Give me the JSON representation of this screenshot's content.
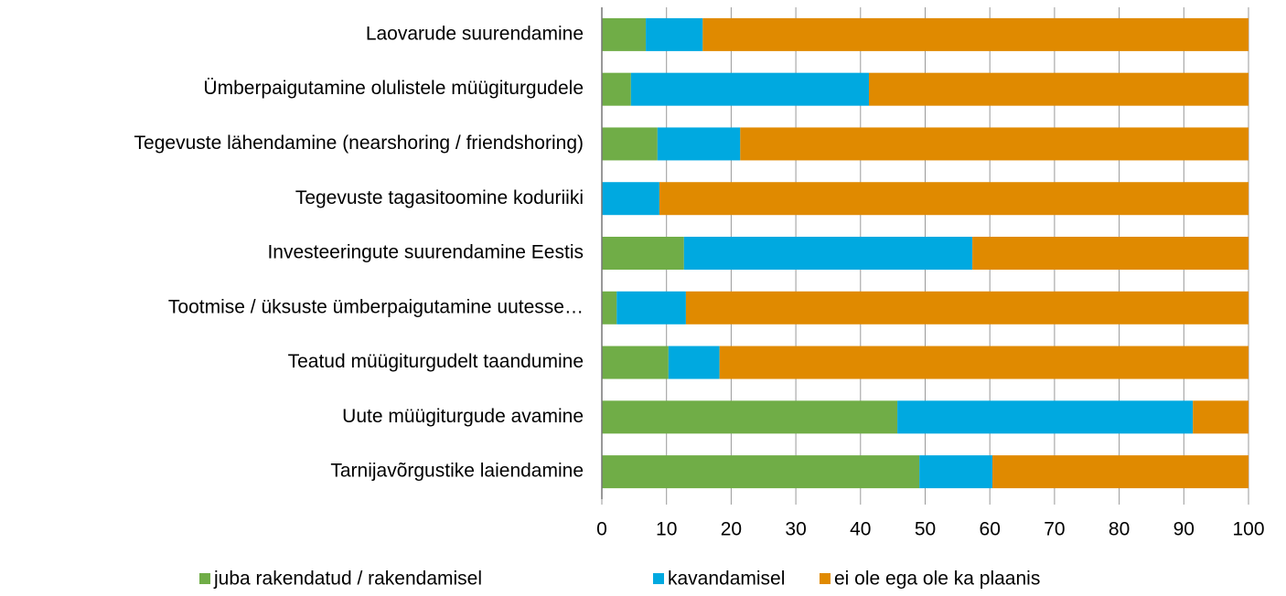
{
  "chart_data": {
    "type": "stacked-bar-horizontal",
    "categories": [
      "Laovarude suurendamine",
      "Ümberpaigutamine olulistele müügiturgudele",
      "Tegevuste lähendamine (nearshoring / friendshoring)",
      "Tegevuste tagasitoomine koduriiki",
      "Investeeringute suurendamine Eestis",
      "Tootmise / üksuste ümberpaigutamine uutesse…",
      "Teatud müügiturgudelt taandumine",
      "Uute müügiturgude avamine",
      "Tarnijavõrgustike laiendamine"
    ],
    "series": [
      {
        "name": "juba rakendatud / rakendamisel",
        "color": "#70ad47",
        "values": [
          6.8,
          4.5,
          8.6,
          0,
          12.7,
          2.3,
          10.3,
          45.7,
          49.1
        ]
      },
      {
        "name": "kavandamisel",
        "color": "#00a9e0",
        "values": [
          8.8,
          36.8,
          12.8,
          8.9,
          44.6,
          10.7,
          7.9,
          45.7,
          11.3
        ]
      },
      {
        "name": "ei ole ega ole ka plaanis",
        "color": "#e08a00",
        "values": [
          84.4,
          58.7,
          78.6,
          91.1,
          42.7,
          87.0,
          81.8,
          8.6,
          39.6
        ]
      }
    ],
    "xlim": [
      0,
      100
    ],
    "xticks": [
      0,
      10,
      20,
      30,
      40,
      50,
      60,
      70,
      80,
      90,
      100
    ],
    "grid": true,
    "legend": "bottom"
  }
}
